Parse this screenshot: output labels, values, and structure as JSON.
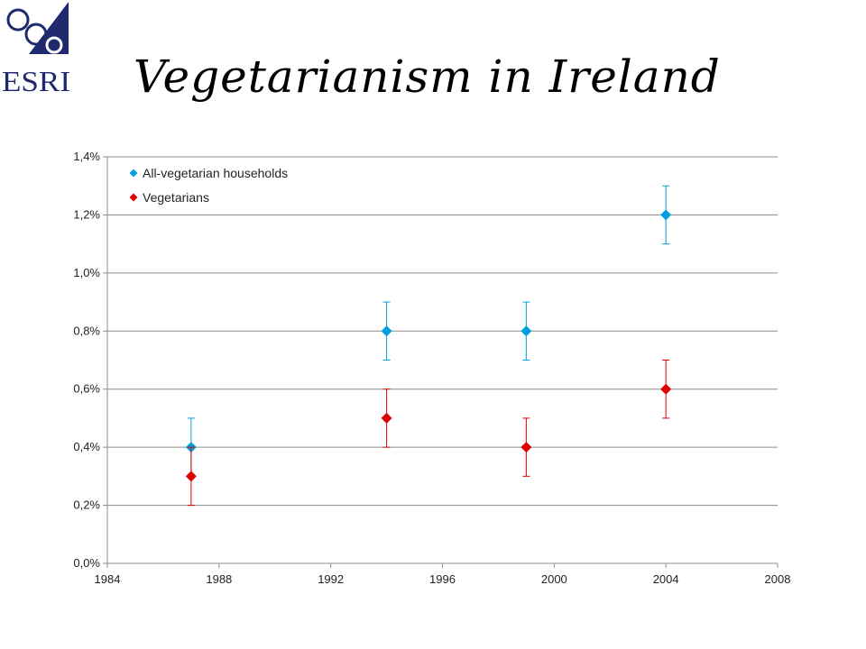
{
  "logo": {
    "text": "ESRI",
    "colors": {
      "navy": "#1f2a6e"
    }
  },
  "title": "Vegetarianism in Ireland",
  "chart_data": {
    "type": "scatter",
    "title": "Vegetarianism in Ireland",
    "xlabel": "",
    "ylabel": "",
    "xlim": [
      1984,
      2008
    ],
    "ylim": [
      0,
      1.4
    ],
    "x_ticks": [
      "1984",
      "1988",
      "1992",
      "1996",
      "2000",
      "2004",
      "2008"
    ],
    "y_ticks": [
      "0,0%",
      "0,2%",
      "0,4%",
      "0,6%",
      "0,8%",
      "1,0%",
      "1,2%",
      "1,4%"
    ],
    "grid": true,
    "legend_position": "top-left",
    "series": [
      {
        "name": "All-vegetarian households",
        "color": "#00a0e0",
        "marker": "diamond",
        "points": [
          {
            "x": 1987,
            "y": 0.4,
            "err_low": 0.3,
            "err_high": 0.5
          },
          {
            "x": 1994,
            "y": 0.8,
            "err_low": 0.7,
            "err_high": 0.9
          },
          {
            "x": 1999,
            "y": 0.8,
            "err_low": 0.7,
            "err_high": 0.9
          },
          {
            "x": 2004,
            "y": 1.2,
            "err_low": 1.1,
            "err_high": 1.3
          }
        ]
      },
      {
        "name": "Vegetarians",
        "color": "#e00000",
        "marker": "diamond",
        "points": [
          {
            "x": 1987,
            "y": 0.3,
            "err_low": 0.2,
            "err_high": 0.4
          },
          {
            "x": 1994,
            "y": 0.5,
            "err_low": 0.4,
            "err_high": 0.6
          },
          {
            "x": 1999,
            "y": 0.4,
            "err_low": 0.3,
            "err_high": 0.5
          },
          {
            "x": 2004,
            "y": 0.6,
            "err_low": 0.5,
            "err_high": 0.7
          }
        ]
      }
    ]
  }
}
